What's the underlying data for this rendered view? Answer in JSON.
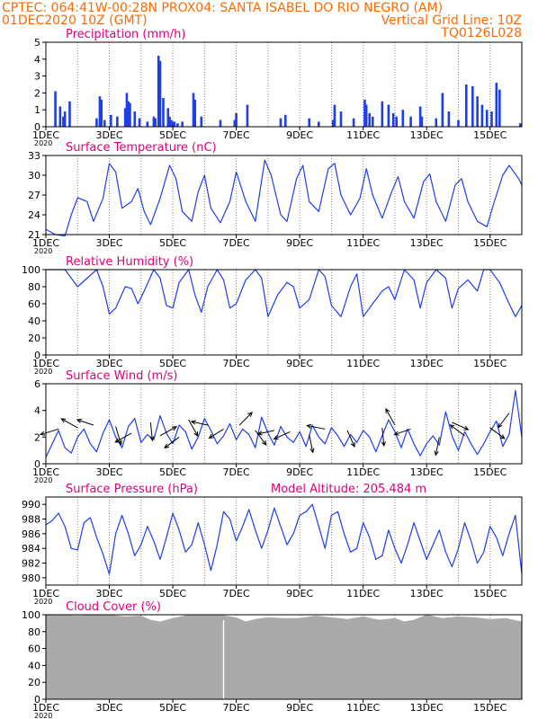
{
  "header": {
    "line1_left": "CPTEC:   064:41W-00:28N   PROX04: SANTA ISABEL DO RIO NEGRO (AM)",
    "line2_left": "01DEC2020 10Z (GMT)",
    "line2_right": "Vertical Grid Line: 10Z",
    "line3_right": "TQ0126L028",
    "color": "#ff6a00"
  },
  "colors": {
    "title": "#e0007a",
    "line": "#1f3fe6",
    "bar": "#1f3fe6",
    "cloud": "#aaaaaa",
    "grid": "#888888",
    "arrow": "#000000"
  },
  "x_axis": {
    "labels": [
      "1DEC",
      "3DEC",
      "5DEC",
      "7DEC",
      "9DEC",
      "11DEC",
      "13DEC",
      "15DEC"
    ],
    "label_days": [
      1,
      3,
      5,
      7,
      9,
      11,
      13,
      15
    ],
    "year_label": "2020",
    "day_range": [
      1,
      16
    ]
  },
  "chart_data": [
    {
      "type": "bar",
      "title": "Precipitation (mm/h)",
      "ylim": [
        0,
        5
      ],
      "yticks": [
        0,
        1,
        2,
        3,
        4,
        5
      ],
      "series": [
        {
          "days": [
            1.3,
            1.45,
            1.55,
            1.6,
            1.75,
            2.6,
            2.7,
            2.75,
            2.85,
            3.05,
            3.25,
            3.5,
            3.55,
            3.6,
            3.65,
            3.8,
            3.95,
            4.2,
            4.4,
            4.45,
            4.55,
            4.6,
            4.7,
            4.85,
            4.9,
            4.95,
            5.0,
            5.05,
            5.15,
            5.3,
            5.65,
            5.7,
            5.9,
            6.5,
            6.95,
            7.0,
            7.35,
            8.4,
            8.55,
            9.3,
            9.6,
            10.05,
            10.1,
            10.3,
            10.7,
            11.05,
            11.1,
            11.2,
            11.3,
            11.6,
            11.8,
            11.95,
            12.05,
            12.25,
            12.5,
            12.8,
            12.85,
            13.3,
            13.5,
            13.7,
            14.0,
            14.25,
            14.45,
            14.6,
            14.75,
            14.9,
            15.05,
            15.2,
            15.3,
            15.95
          ],
          "values": [
            2.1,
            1.2,
            0.6,
            0.9,
            1.5,
            0.5,
            1.8,
            1.6,
            0.4,
            0.7,
            0.6,
            1.1,
            2.0,
            1.5,
            1.4,
            0.9,
            0.5,
            0.3,
            0.6,
            0.5,
            4.2,
            3.9,
            1.7,
            1.1,
            0.6,
            0.4,
            0.3,
            0.3,
            0.2,
            0.3,
            2.0,
            1.6,
            0.6,
            0.4,
            0.4,
            0.8,
            1.3,
            0.5,
            0.7,
            0.5,
            0.3,
            0.4,
            1.3,
            0.9,
            0.5,
            1.6,
            1.3,
            0.8,
            0.6,
            1.5,
            1.3,
            0.8,
            0.6,
            1.0,
            0.6,
            1.2,
            0.6,
            0.5,
            2.0,
            0.9,
            0.4,
            2.5,
            2.4,
            1.8,
            1.3,
            1.0,
            0.9,
            2.6,
            2.2,
            0.2
          ]
        }
      ]
    },
    {
      "type": "line",
      "title": "Surface Temperature (nC)",
      "ylim": [
        21,
        33
      ],
      "yticks": [
        21,
        24,
        27,
        30,
        33
      ],
      "series": [
        {
          "days": [
            1.0,
            1.3,
            1.6,
            1.8,
            2.0,
            2.3,
            2.5,
            2.8,
            3.0,
            3.2,
            3.4,
            3.7,
            3.9,
            4.1,
            4.3,
            4.6,
            4.9,
            5.1,
            5.3,
            5.6,
            5.8,
            6.0,
            6.2,
            6.5,
            6.8,
            7.0,
            7.3,
            7.6,
            7.9,
            8.1,
            8.4,
            8.6,
            8.9,
            9.1,
            9.3,
            9.6,
            9.9,
            10.1,
            10.3,
            10.6,
            10.9,
            11.1,
            11.3,
            11.6,
            11.9,
            12.1,
            12.3,
            12.6,
            12.9,
            13.1,
            13.3,
            13.6,
            13.9,
            14.1,
            14.3,
            14.6,
            14.9,
            15.1,
            15.4,
            15.6,
            15.9,
            16.0
          ],
          "values": [
            21.8,
            21.0,
            20.8,
            24.0,
            26.6,
            26.0,
            23.0,
            26.5,
            31.8,
            30.5,
            25.0,
            26.0,
            28.0,
            24.5,
            22.5,
            26.5,
            31.5,
            29.5,
            24.5,
            23.0,
            27.5,
            30.0,
            25.0,
            22.8,
            26.0,
            30.5,
            26.0,
            23.0,
            32.3,
            30.0,
            24.0,
            23.0,
            29.5,
            31.5,
            26.0,
            24.5,
            31.0,
            31.8,
            27.0,
            24.0,
            26.5,
            31.0,
            27.0,
            23.5,
            27.5,
            29.8,
            26.0,
            23.5,
            29.0,
            30.2,
            26.0,
            23.0,
            28.5,
            29.5,
            26.0,
            23.0,
            22.2,
            25.5,
            30.0,
            31.5,
            29.5,
            28.5
          ]
        }
      ]
    },
    {
      "type": "line",
      "title": "Relative Humidity (%)",
      "ylim": [
        0,
        100
      ],
      "yticks": [
        0,
        20,
        40,
        60,
        80,
        100
      ],
      "series": [
        {
          "days": [
            1.0,
            1.3,
            1.6,
            1.8,
            2.0,
            2.3,
            2.6,
            2.8,
            3.0,
            3.2,
            3.5,
            3.7,
            3.9,
            4.1,
            4.4,
            4.6,
            4.8,
            5.0,
            5.2,
            5.5,
            5.7,
            5.9,
            6.1,
            6.4,
            6.6,
            6.8,
            7.0,
            7.3,
            7.6,
            7.8,
            8.0,
            8.3,
            8.6,
            8.8,
            9.0,
            9.3,
            9.6,
            9.8,
            10.0,
            10.3,
            10.6,
            10.8,
            11.0,
            11.3,
            11.6,
            11.8,
            12.0,
            12.3,
            12.6,
            12.8,
            13.0,
            13.3,
            13.6,
            13.8,
            14.0,
            14.3,
            14.6,
            14.8,
            15.0,
            15.3,
            15.6,
            15.8,
            16.0
          ],
          "values": [
            100,
            100,
            100,
            90,
            80,
            90,
            100,
            80,
            48,
            55,
            80,
            78,
            60,
            75,
            100,
            90,
            58,
            55,
            85,
            100,
            70,
            50,
            80,
            100,
            88,
            55,
            60,
            88,
            100,
            90,
            45,
            70,
            85,
            80,
            55,
            65,
            100,
            92,
            58,
            45,
            80,
            95,
            45,
            60,
            75,
            80,
            65,
            100,
            88,
            55,
            85,
            100,
            90,
            55,
            78,
            88,
            75,
            100,
            100,
            85,
            60,
            45,
            58
          ]
        }
      ]
    },
    {
      "type": "line",
      "title": "Surface Wind (m/s)",
      "ylim": [
        0,
        6
      ],
      "yticks": [
        0,
        2,
        4,
        6
      ],
      "series": [
        {
          "days": [
            1.0,
            1.2,
            1.4,
            1.6,
            1.8,
            2.0,
            2.2,
            2.4,
            2.6,
            2.8,
            3.0,
            3.2,
            3.4,
            3.6,
            3.8,
            4.0,
            4.2,
            4.4,
            4.6,
            4.8,
            5.0,
            5.2,
            5.4,
            5.6,
            5.8,
            6.0,
            6.2,
            6.4,
            6.6,
            6.8,
            7.0,
            7.2,
            7.4,
            7.6,
            7.8,
            8.0,
            8.2,
            8.4,
            8.6,
            8.8,
            9.0,
            9.2,
            9.4,
            9.6,
            9.8,
            10.0,
            10.2,
            10.4,
            10.6,
            10.8,
            11.0,
            11.2,
            11.4,
            11.6,
            11.8,
            12.0,
            12.2,
            12.4,
            12.6,
            12.8,
            13.0,
            13.2,
            13.4,
            13.6,
            13.8,
            14.0,
            14.2,
            14.4,
            14.6,
            14.8,
            15.0,
            15.2,
            15.4,
            15.6,
            15.8,
            16.0
          ],
          "values": [
            0.5,
            1.5,
            2.5,
            1.2,
            0.8,
            2.0,
            2.6,
            1.5,
            0.9,
            2.3,
            3.3,
            2.0,
            1.2,
            2.8,
            3.4,
            1.6,
            2.2,
            1.8,
            3.6,
            2.3,
            1.5,
            2.9,
            2.4,
            1.1,
            2.0,
            3.4,
            2.5,
            1.5,
            2.1,
            3.0,
            1.8,
            2.6,
            2.2,
            1.2,
            3.5,
            2.3,
            1.4,
            2.8,
            2.0,
            1.6,
            2.4,
            1.3,
            2.9,
            2.0,
            1.5,
            2.7,
            2.1,
            1.3,
            2.2,
            1.6,
            2.5,
            2.0,
            0.9,
            2.1,
            3.3,
            2.4,
            1.2,
            2.6,
            1.5,
            0.6,
            1.5,
            2.1,
            1.4,
            3.9,
            2.1,
            1.0,
            2.4,
            1.5,
            0.7,
            1.5,
            2.4,
            3.2,
            1.3,
            2.2,
            5.5,
            2.0
          ]
        }
      ],
      "wind_vectors": [
        {
          "day": 1.4,
          "speed": 2.6,
          "u": -1.0,
          "v": -0.3
        },
        {
          "day": 2.0,
          "speed": 2.7,
          "u": -0.9,
          "v": 0.5
        },
        {
          "day": 2.5,
          "speed": 2.9,
          "u": -0.9,
          "v": 0.3
        },
        {
          "day": 3.2,
          "speed": 2.8,
          "u": 0.3,
          "v": -1.0
        },
        {
          "day": 3.7,
          "speed": 2.3,
          "u": -0.9,
          "v": -0.5
        },
        {
          "day": 4.3,
          "speed": 3.1,
          "u": 0.1,
          "v": -1.0
        },
        {
          "day": 4.6,
          "speed": 2.1,
          "u": 0.9,
          "v": 0.5
        },
        {
          "day": 5.2,
          "speed": 2.0,
          "u": -0.8,
          "v": -0.6
        },
        {
          "day": 5.5,
          "speed": 3.3,
          "u": 0.5,
          "v": -0.9
        },
        {
          "day": 6.1,
          "speed": 2.9,
          "u": -0.9,
          "v": 0.2
        },
        {
          "day": 6.6,
          "speed": 2.6,
          "u": -0.8,
          "v": -0.5
        },
        {
          "day": 7.1,
          "speed": 2.9,
          "u": 0.7,
          "v": 0.7
        },
        {
          "day": 7.6,
          "speed": 2.5,
          "u": 0.6,
          "v": -0.8
        },
        {
          "day": 8.2,
          "speed": 2.5,
          "u": -0.9,
          "v": -0.2
        },
        {
          "day": 8.7,
          "speed": 2.4,
          "u": -0.9,
          "v": -0.4
        },
        {
          "day": 9.3,
          "speed": 2.2,
          "u": 0.2,
          "v": -1.0
        },
        {
          "day": 9.8,
          "speed": 2.6,
          "u": -1.0,
          "v": 0.2
        },
        {
          "day": 10.5,
          "speed": 2.5,
          "u": 0.4,
          "v": -0.9
        },
        {
          "day": 11.6,
          "speed": 2.7,
          "u": 0.1,
          "v": -1.0
        },
        {
          "day": 12.0,
          "speed": 2.9,
          "u": -0.5,
          "v": 0.9
        },
        {
          "day": 12.5,
          "speed": 2.6,
          "u": -0.9,
          "v": -0.3
        },
        {
          "day": 13.4,
          "speed": 2.0,
          "u": -0.2,
          "v": -1.0
        },
        {
          "day": 13.8,
          "speed": 3.1,
          "u": 0.9,
          "v": -0.4
        },
        {
          "day": 14.2,
          "speed": 2.1,
          "u": -0.8,
          "v": 0.6
        },
        {
          "day": 15.0,
          "speed": 2.7,
          "u": 0.8,
          "v": -0.6
        },
        {
          "day": 15.6,
          "speed": 3.8,
          "u": -0.6,
          "v": -0.8
        }
      ]
    },
    {
      "type": "line",
      "title": "Surface Pressure (hPa)",
      "subtitle": "Model Altitude: 205.484 m",
      "ylim": [
        979,
        991
      ],
      "yticks": [
        980,
        982,
        984,
        986,
        988,
        990
      ],
      "series": [
        {
          "days": [
            1.0,
            1.2,
            1.4,
            1.6,
            1.8,
            2.0,
            2.2,
            2.4,
            2.6,
            2.8,
            3.0,
            3.2,
            3.4,
            3.6,
            3.8,
            4.0,
            4.2,
            4.4,
            4.6,
            4.8,
            5.0,
            5.2,
            5.4,
            5.6,
            5.8,
            6.0,
            6.2,
            6.4,
            6.6,
            6.8,
            7.0,
            7.2,
            7.4,
            7.6,
            7.8,
            8.0,
            8.2,
            8.4,
            8.6,
            8.8,
            9.0,
            9.2,
            9.4,
            9.6,
            9.8,
            10.0,
            10.2,
            10.4,
            10.6,
            10.8,
            11.0,
            11.2,
            11.4,
            11.6,
            11.8,
            12.0,
            12.2,
            12.4,
            12.6,
            12.8,
            13.0,
            13.2,
            13.4,
            13.6,
            13.8,
            14.0,
            14.2,
            14.4,
            14.6,
            14.8,
            15.0,
            15.2,
            15.4,
            15.6,
            15.8,
            16.0
          ],
          "values": [
            987.2,
            987.8,
            988.8,
            987.0,
            984.0,
            983.8,
            987.5,
            988.2,
            985.5,
            983.2,
            980.5,
            986.0,
            988.5,
            986.0,
            983.0,
            984.5,
            987.0,
            985.0,
            982.5,
            985.5,
            988.8,
            986.5,
            983.5,
            984.5,
            987.5,
            984.5,
            981.0,
            984.5,
            989.0,
            988.0,
            985.0,
            987.0,
            989.3,
            986.5,
            984.0,
            986.5,
            989.5,
            987.0,
            984.5,
            986.0,
            988.5,
            989.0,
            990.0,
            987.0,
            984.0,
            988.5,
            989.0,
            986.0,
            983.5,
            984.0,
            987.5,
            985.5,
            982.5,
            983.0,
            986.5,
            984.0,
            982.0,
            984.5,
            987.5,
            985.0,
            982.5,
            984.5,
            986.5,
            983.5,
            981.5,
            984.0,
            987.5,
            985.0,
            982.0,
            983.5,
            987.0,
            985.5,
            983.0,
            986.0,
            988.5,
            980.5
          ]
        }
      ]
    },
    {
      "type": "area",
      "title": "Cloud Cover (%)",
      "ylim": [
        0,
        100
      ],
      "yticks": [
        0,
        20,
        40,
        60,
        80,
        100
      ],
      "series": [
        {
          "days": [
            1.0,
            1.5,
            2.0,
            2.5,
            3.0,
            3.5,
            4.0,
            4.3,
            4.6,
            5.0,
            5.5,
            6.0,
            6.5,
            7.0,
            7.3,
            7.6,
            8.0,
            8.5,
            9.0,
            9.5,
            10.0,
            10.5,
            11.0,
            11.5,
            12.0,
            12.3,
            12.6,
            13.0,
            13.5,
            14.0,
            14.5,
            15.0,
            15.5,
            16.0
          ],
          "values": [
            100,
            100,
            99,
            100,
            100,
            98,
            99,
            94,
            92,
            96,
            100,
            100,
            100,
            97,
            92,
            95,
            97,
            96,
            96,
            99,
            97,
            95,
            98,
            94,
            96,
            92,
            94,
            100,
            96,
            98,
            97,
            95,
            96,
            92
          ]
        }
      ],
      "note": "near-total cloud cover throughout, with a brief gap near 6.6DEC"
    }
  ]
}
